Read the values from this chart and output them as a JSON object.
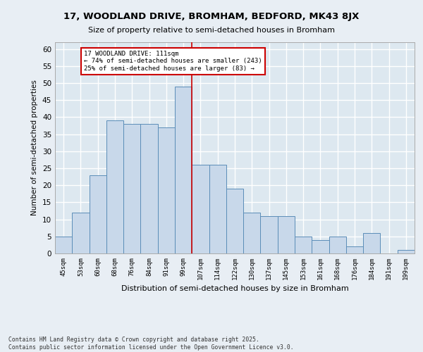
{
  "title1": "17, WOODLAND DRIVE, BROMHAM, BEDFORD, MK43 8JX",
  "title2": "Size of property relative to semi-detached houses in Bromham",
  "xlabel": "Distribution of semi-detached houses by size in Bromham",
  "ylabel": "Number of semi-detached properties",
  "categories": [
    "45sqm",
    "53sqm",
    "60sqm",
    "68sqm",
    "76sqm",
    "84sqm",
    "91sqm",
    "99sqm",
    "107sqm",
    "114sqm",
    "122sqm",
    "130sqm",
    "137sqm",
    "145sqm",
    "153sqm",
    "161sqm",
    "168sqm",
    "176sqm",
    "184sqm",
    "191sqm",
    "199sqm"
  ],
  "values": [
    5,
    12,
    23,
    39,
    38,
    38,
    37,
    49,
    26,
    26,
    19,
    12,
    11,
    11,
    5,
    4,
    5,
    2,
    6,
    0,
    1
  ],
  "bar_color": "#c8d8ea",
  "bar_edge_color": "#5b8db8",
  "background_color": "#dde8f0",
  "fig_background_color": "#e8eef4",
  "grid_color": "#ffffff",
  "vline_color": "#cc0000",
  "annotation_title": "17 WOODLAND DRIVE: 111sqm",
  "annotation_line1": "← 74% of semi-detached houses are smaller (243)",
  "annotation_line2": "25% of semi-detached houses are larger (83) →",
  "annotation_box_color": "#cc0000",
  "ylim": [
    0,
    62
  ],
  "yticks": [
    0,
    5,
    10,
    15,
    20,
    25,
    30,
    35,
    40,
    45,
    50,
    55,
    60
  ],
  "footer1": "Contains HM Land Registry data © Crown copyright and database right 2025.",
  "footer2": "Contains public sector information licensed under the Open Government Licence v3.0."
}
